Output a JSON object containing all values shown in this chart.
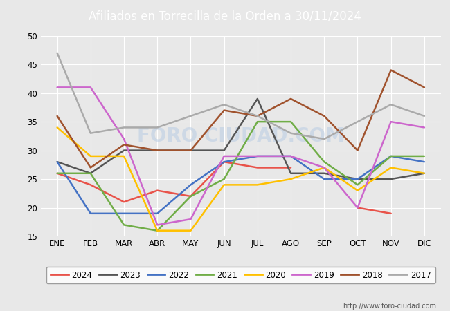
{
  "title": "Afiliados en Torrecilla de la Orden a 30/11/2024",
  "months": [
    "ENE",
    "FEB",
    "MAR",
    "ABR",
    "MAY",
    "JUN",
    "JUL",
    "AGO",
    "SEP",
    "OCT",
    "NOV",
    "DIC"
  ],
  "ylim": [
    15,
    50
  ],
  "yticks": [
    15,
    20,
    25,
    30,
    35,
    40,
    45,
    50
  ],
  "series": {
    "2024": {
      "values": [
        26,
        24,
        21,
        23,
        22,
        28,
        27,
        27,
        null,
        20,
        19,
        null
      ],
      "color": "#e8534a"
    },
    "2023": {
      "values": [
        28,
        26,
        30,
        30,
        30,
        30,
        39,
        26,
        26,
        25,
        25,
        26
      ],
      "color": "#555555"
    },
    "2022": {
      "values": [
        28,
        19,
        19,
        19,
        24,
        28,
        29,
        29,
        25,
        25,
        29,
        28
      ],
      "color": "#4472c4"
    },
    "2021": {
      "values": [
        26,
        26,
        17,
        16,
        22,
        25,
        35,
        35,
        28,
        24,
        29,
        29
      ],
      "color": "#70ad47"
    },
    "2020": {
      "values": [
        34,
        29,
        29,
        16,
        16,
        24,
        24,
        25,
        27,
        23,
        27,
        26
      ],
      "color": "#ffc000"
    },
    "2019": {
      "values": [
        41,
        41,
        32,
        17,
        18,
        29,
        29,
        29,
        27,
        20,
        35,
        34
      ],
      "color": "#cc66cc"
    },
    "2018": {
      "values": [
        36,
        27,
        31,
        30,
        30,
        37,
        36,
        39,
        36,
        30,
        44,
        41
      ],
      "color": "#a0522d"
    },
    "2017": {
      "values": [
        47,
        33,
        34,
        34,
        36,
        38,
        36,
        33,
        32,
        35,
        38,
        36
      ],
      "color": "#aaaaaa"
    }
  },
  "legend_order": [
    "2024",
    "2023",
    "2022",
    "2021",
    "2020",
    "2019",
    "2018",
    "2017"
  ],
  "footer_url": "http://www.foro-ciudad.com",
  "bg_color": "#e8e8e8",
  "plot_bg": "#e8e8e8",
  "grid_color": "#ffffff",
  "header_color": "#4a7ab5",
  "linewidth": 1.8
}
